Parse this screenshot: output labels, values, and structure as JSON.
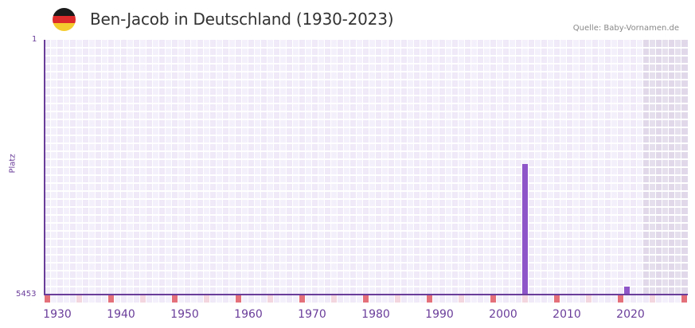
{
  "header": {
    "title": "Ben-Jacob in Deutschland (1930-2023)",
    "source": "Quelle: Baby-Vornamen.de",
    "flag_colors": [
      "#1a1a1a",
      "#dd2a2a",
      "#f5cc2e"
    ]
  },
  "colors": {
    "bar": "#8e55c9",
    "axis": "#6a3d9a",
    "cell_a": "#efe9f8",
    "cell_b": "#f4f0fb",
    "decade_marker": "#e4707a",
    "half_decade_marker": "#f3d6df",
    "future_shade": "#e2dcea"
  },
  "chart_data": {
    "type": "bar",
    "title": "Ben-Jacob in Deutschland (1930-2023)",
    "xlabel": "",
    "ylabel": "Platz",
    "y_inverted": true,
    "ylim": [
      1,
      5453
    ],
    "y_tick_labels": [
      "1",
      "5453"
    ],
    "x_range": [
      1930,
      2030
    ],
    "x_tick_labels": [
      "1930",
      "1940",
      "1950",
      "1960",
      "1970",
      "1980",
      "1990",
      "2000",
      "2010",
      "2020"
    ],
    "future_shaded_from": 2024,
    "grid": true,
    "legend": null,
    "series": [
      {
        "name": "Platz",
        "points": [
          {
            "year": 2005,
            "rank": 2660
          },
          {
            "year": 2021,
            "rank": 5283
          }
        ]
      }
    ]
  }
}
